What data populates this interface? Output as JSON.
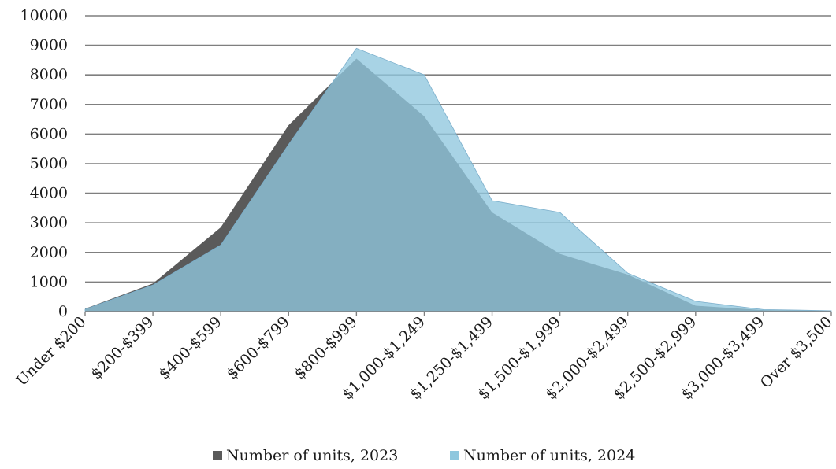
{
  "chart_data": {
    "type": "area",
    "categories": [
      "Under $200",
      "$200-$399",
      "$400-$599",
      "$600-$799",
      "$800-$999",
      "$1,000-$1,249",
      "$1,250-$1,499",
      "$1,500-$1,999",
      "$2,000-$2,499",
      "$2,500-$2,999",
      "$3,000-$3,499",
      "Over $3,500"
    ],
    "series": [
      {
        "name": "Number of units, 2023",
        "color": "#5a5a5a",
        "values": [
          100,
          950,
          2850,
          6300,
          8550,
          6600,
          3350,
          1950,
          1250,
          200,
          50,
          20
        ]
      },
      {
        "name": "Number of units, 2024",
        "color": "#8fc7de",
        "values": [
          80,
          900,
          2250,
          5650,
          8900,
          8000,
          3750,
          3350,
          1300,
          350,
          70,
          30
        ]
      }
    ],
    "ylim": [
      0,
      10000
    ],
    "yticks": [
      0,
      1000,
      2000,
      3000,
      4000,
      5000,
      6000,
      7000,
      8000,
      9000,
      10000
    ],
    "grid": true,
    "legend": "bottom"
  }
}
